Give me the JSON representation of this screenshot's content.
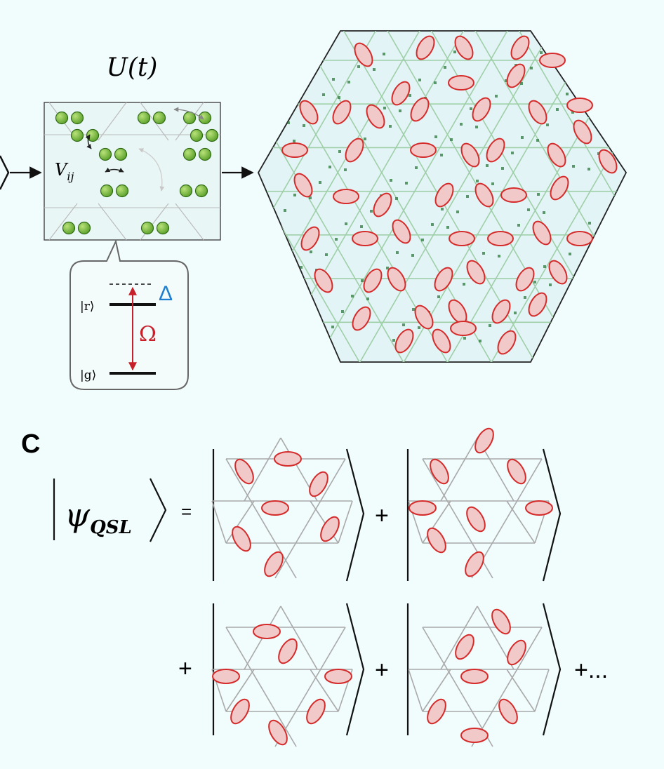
{
  "top": {
    "evolution_label": "U(t)",
    "interaction_label_base": "V",
    "interaction_label_sub": "ij",
    "level_r": "|r⟩",
    "level_g": "|g⟩",
    "detuning_symbol": "Δ",
    "rabi_symbol": "Ω"
  },
  "panel_c": {
    "letter": "C",
    "psi_symbol": "ψ",
    "psi_subscript": "QSL",
    "equals": "=",
    "plus": "+",
    "trailing": "+..."
  },
  "colors": {
    "background": "#f1fcfd",
    "dimer_fill": "#f2c9c9",
    "dimer_stroke": "#d52a2a",
    "atom_fill": "#7bc043",
    "lattice": "#a9a9a9",
    "detuning": "#1e7fd0",
    "rabi": "#c8202a",
    "hexagon_fill": "#e3f4f6"
  }
}
